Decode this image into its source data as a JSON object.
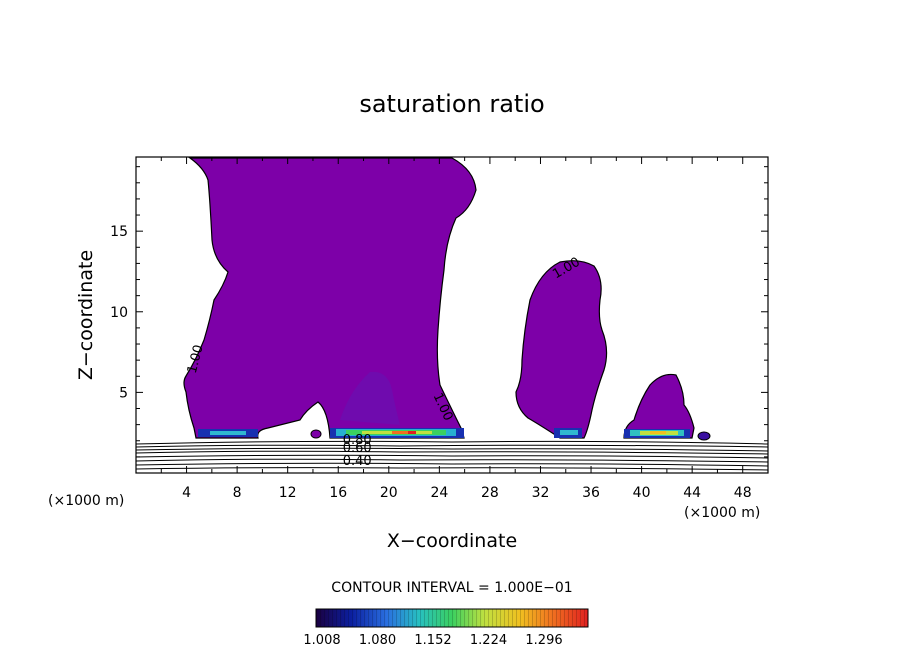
{
  "chart_data": {
    "type": "heatmap",
    "title": "saturation ratio",
    "xlabel": "X−coordinate",
    "ylabel": "Z−coordinate",
    "x_unit_left": "(×1000 m)",
    "x_unit_right": "(×1000 m)",
    "xlim": [
      0,
      50
    ],
    "ylim": [
      0,
      19.6
    ],
    "x_ticks": [
      4,
      8,
      12,
      16,
      20,
      24,
      28,
      32,
      36,
      40,
      44,
      48
    ],
    "y_ticks": [
      5,
      10,
      15
    ],
    "fill_threshold": 1.0,
    "contour_interval_label": "CONTOUR INTERVAL = 1.000E−01",
    "contour_labels": [
      {
        "text": "1.00",
        "x": 5.0,
        "y": 7.0,
        "angle": -75
      },
      {
        "text": "1.00",
        "x": 24.0,
        "y": 4.0,
        "angle": 65
      },
      {
        "text": "1.00",
        "x": 34.2,
        "y": 12.5,
        "angle": -30
      },
      {
        "text": "0.80",
        "x": 17.5,
        "y": 1.8,
        "angle": 0
      },
      {
        "text": "0.60",
        "x": 17.5,
        "y": 1.3,
        "angle": 0
      },
      {
        "text": "0.40",
        "x": 17.5,
        "y": 0.5,
        "angle": 0
      }
    ],
    "colorbar": {
      "tick_labels": [
        "1.008",
        "1.080",
        "1.152",
        "1.224",
        "1.296"
      ],
      "colors": [
        "#1a0040",
        "#0b1fa0",
        "#2a6fe0",
        "#27c0c0",
        "#3bd060",
        "#c0e040",
        "#f0c020",
        "#f07020",
        "#e02020"
      ]
    },
    "regions_above_threshold": [
      {
        "name": "main cloud",
        "x_range": [
          4.5,
          27.0
        ],
        "z_range": [
          2.3,
          19.6
        ],
        "max_value": 1.3
      },
      {
        "name": "middle cloud",
        "x_range": [
          30.5,
          37.0
        ],
        "z_range": [
          2.3,
          13.5
        ],
        "max_value": 1.15
      },
      {
        "name": "right cloud",
        "x_range": [
          38.5,
          44.5
        ],
        "z_range": [
          2.3,
          6.3
        ],
        "max_value": 1.25
      }
    ],
    "colors": {
      "fill": "#7d00a8",
      "contour": "#000000"
    }
  }
}
